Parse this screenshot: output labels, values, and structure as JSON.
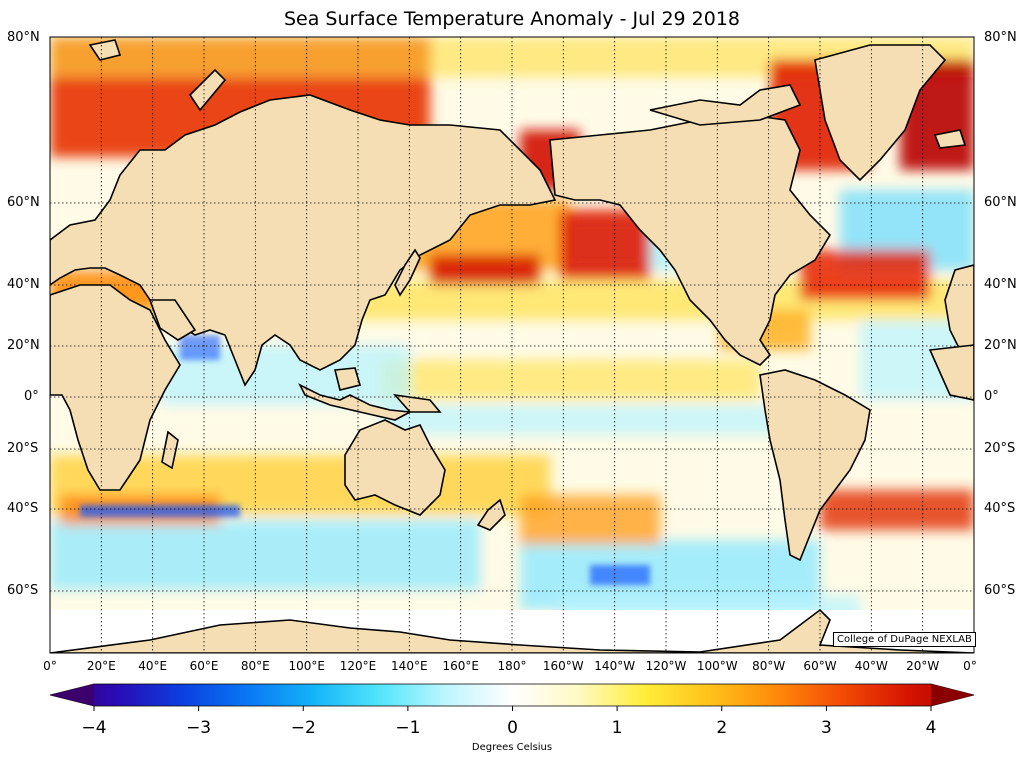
{
  "title": "Sea Surface Temperature Anomaly - Jul 29 2018",
  "credit": "College of DuPage NEXLAB",
  "colorbar": {
    "label": "Degrees Celsius",
    "min": -4,
    "max": 4,
    "ticks": [
      "−4",
      "−3",
      "−2",
      "−1",
      "0",
      "1",
      "2",
      "3",
      "4"
    ],
    "colors": [
      "#3b006b",
      "#2a0bb5",
      "#0b3fe0",
      "#0a78f5",
      "#14b4f8",
      "#52e6fb",
      "#bdf6ff",
      "#ffffff",
      "#fff9c4",
      "#ffee3a",
      "#ffc21a",
      "#ff8a0a",
      "#f34b05",
      "#d61400",
      "#a80000"
    ]
  },
  "latitude_labels": {
    "left": [
      "80°N",
      "60°N",
      "40°N",
      "20°N",
      "0°",
      "20°S",
      "40°S",
      "60°S"
    ],
    "right": [
      "80°N",
      "60°N",
      "40°N",
      "20°N",
      "0°",
      "20°S",
      "40°S",
      "60°S"
    ]
  },
  "longitude_labels": [
    "0°",
    "20°E",
    "40°E",
    "60°E",
    "80°E",
    "100°E",
    "120°E",
    "140°E",
    "160°E",
    "180°",
    "160°W",
    "140°W",
    "120°W",
    "100°W",
    "80°W",
    "60°W",
    "40°W",
    "20°W",
    "0°"
  ],
  "colors": {
    "land": "#f5deb3",
    "ocean_neutral": "#fffbe6",
    "warm_strong": "#b30000",
    "warm": "#ff5a00",
    "warm_mild": "#ffd21a",
    "cool": "#8ee8ff",
    "cool_strong": "#1a5cff"
  }
}
